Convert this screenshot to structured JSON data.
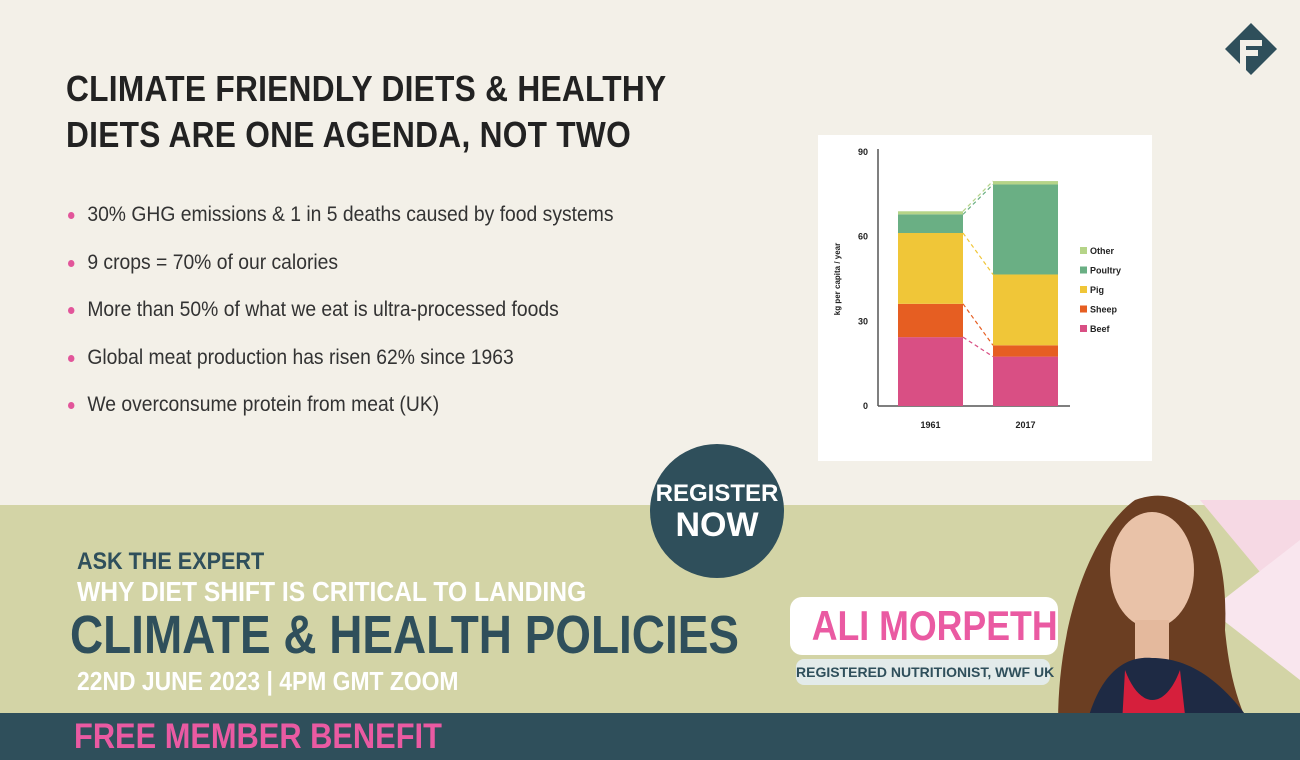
{
  "title_lines": [
    "CLIMATE FRIENDLY DIETS & HEALTHY",
    "DIETS ARE ONE AGENDA, NOT TWO"
  ],
  "bullets": [
    "30% GHG emissions & 1 in 5 deaths caused by food systems",
    "9 crops = 70% of our calories",
    "More than 50% of what we eat is ultra-processed foods",
    "Global meat production has risen 62% since 1963",
    "We overconsume protein from meat (UK)"
  ],
  "register": {
    "line1": "REGISTER",
    "line2": "NOW"
  },
  "event": {
    "kicker": "ASK THE EXPERT",
    "subtitle": "WHY DIET SHIFT IS CRITICAL TO LANDING",
    "headline": "CLIMATE & HEALTH POLICIES",
    "date": "22ND JUNE 2023 |  4PM GMT ZOOM"
  },
  "speaker": {
    "name": "ALI MORPETH",
    "role": "REGISTERED NUTRITIONIST, WWF UK"
  },
  "footer": "FREE MEMBER BENEFIT",
  "colors": {
    "accent": "#ea5aa2",
    "dark": "#2f4f5b",
    "band": "#d3d4a6"
  },
  "chart_data": {
    "type": "bar",
    "stacked": true,
    "categories": [
      "1961",
      "2017"
    ],
    "ylabel": "kg per capita / year",
    "ylim": [
      0,
      90
    ],
    "yticks": [
      0,
      30,
      60,
      90
    ],
    "series": [
      {
        "name": "Beef",
        "color": "#d94f84",
        "values": [
          24.4,
          17.5
        ]
      },
      {
        "name": "Sheep",
        "color": "#e65e22",
        "values": [
          11.8,
          4.0
        ]
      },
      {
        "name": "Pig",
        "color": "#f0c638",
        "values": [
          25.1,
          25.1
        ]
      },
      {
        "name": "Poultry",
        "color": "#6aaf84",
        "values": [
          6.6,
          31.9
        ]
      },
      {
        "name": "Other",
        "color": "#b5d488",
        "values": [
          1.1,
          1.2
        ]
      }
    ],
    "legend_position": "right"
  }
}
